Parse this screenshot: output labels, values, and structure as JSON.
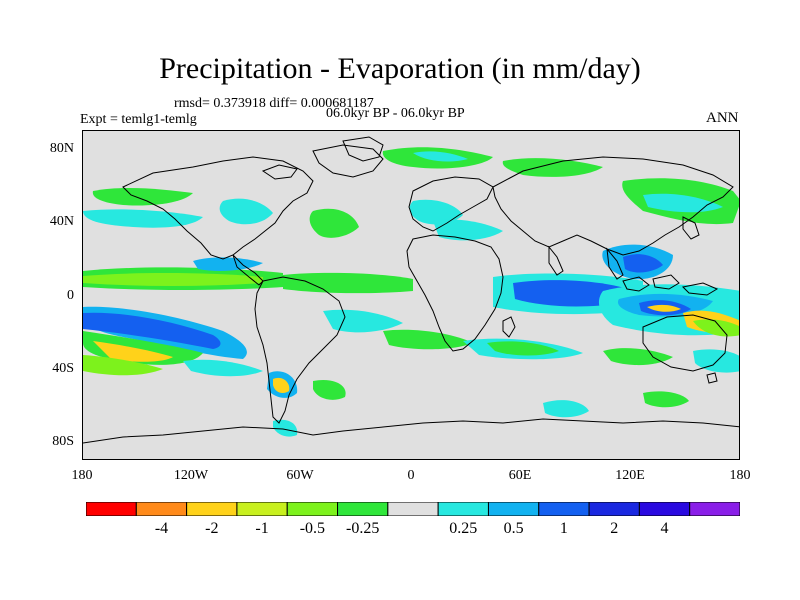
{
  "title": "Precipitation - Evaporation (in mm/day)",
  "stats": "rmsd= 0.373918 diff= 0.000681187",
  "period": "06.0kyr BP - 06.0kyr BP",
  "experiment": "Expt = temlg1-temlg",
  "season": "ANN",
  "y_axis_labels": [
    "80N",
    "40N",
    "0",
    "40S",
    "80S"
  ],
  "x_axis_labels": [
    "180",
    "120W",
    "60W",
    "0",
    "60E",
    "120E",
    "180"
  ],
  "colorbar": {
    "colors": [
      "#ff0000",
      "#ff8a1a",
      "#ffd21a",
      "#c8f01e",
      "#7df21c",
      "#2fe63a",
      "#e0e0e0",
      "#27e8e0",
      "#12b2f0",
      "#1460f0",
      "#1a28e0",
      "#2a0ae0",
      "#8a1ee8"
    ],
    "labels": [
      "-4",
      "-2",
      "-1",
      "-0.5",
      "-0.25",
      "0.25",
      "0.5",
      "1",
      "2",
      "4"
    ]
  },
  "map_colors": {
    "ocean": "#e0e0e0",
    "coast": "#000000"
  }
}
